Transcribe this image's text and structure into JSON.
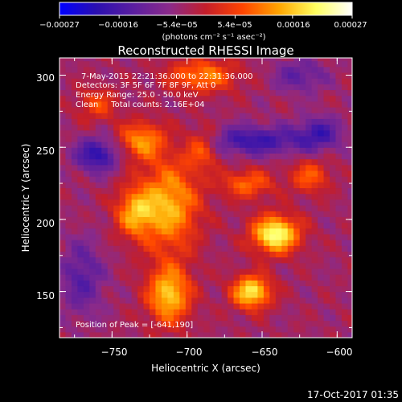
{
  "chart_data": {
    "type": "heatmap",
    "title": "Reconstructed RHESSI Image",
    "xlabel": "Heliocentric X (arcsec)",
    "ylabel": "Heliocentric Y (arcsec)",
    "xlim": [
      -785,
      -590
    ],
    "ylim": [
      118,
      312
    ],
    "x_ticks": [
      -750,
      -700,
      -650,
      -600
    ],
    "y_ticks": [
      150,
      200,
      250,
      300
    ],
    "x_tick_labels": [
      "−750",
      "−700",
      "−650",
      "−600"
    ],
    "y_tick_labels": [
      "150",
      "200",
      "250",
      "300"
    ],
    "colorbar": {
      "range": [
        -0.00027,
        0.00027
      ],
      "ticks": [
        -0.00027,
        -0.00016,
        -5.4e-05,
        5.4e-05,
        0.00016,
        0.00027
      ],
      "tick_labels": [
        "−0.00027",
        "−0.00016",
        "−5.4e−05",
        "5.4e−05",
        "0.00016",
        "0.00027"
      ],
      "unit_label": "(photons cm⁻² s⁻¹ asec⁻²)",
      "colors": [
        "#0000ff",
        "#2a0fb0",
        "#5a1ea0",
        "#8a2a8a",
        "#c41e2a",
        "#ff4400",
        "#ffa500",
        "#ffff60",
        "#ffffff"
      ]
    },
    "annotations": [
      "7-May-2015 22:21:36.000 to 22:31:36.000",
      "Detectors: 3F 5F 6F 7F 8F 9F, Att 0",
      "Energy Range: 25.0 - 50.0 keV",
      "Clean     Total counts: 2.16E+04",
      "Position of Peak = [-641,190]"
    ],
    "peak": [
      -641,
      190
    ],
    "sources": [
      {
        "x": -641,
        "y": 190,
        "amp": 0.00027,
        "sx": 11,
        "sy": 9
      },
      {
        "x": -657,
        "y": 150,
        "amp": 0.00024,
        "sx": 9,
        "sy": 8
      },
      {
        "x": -712,
        "y": 148,
        "amp": 0.00021,
        "sx": 10,
        "sy": 14
      },
      {
        "x": -712,
        "y": 210,
        "amp": 0.00019,
        "sx": 14,
        "sy": 22
      },
      {
        "x": -735,
        "y": 205,
        "amp": 0.00016,
        "sx": 9,
        "sy": 12
      },
      {
        "x": -730,
        "y": 255,
        "amp": 0.00016,
        "sx": 11,
        "sy": 9
      },
      {
        "x": -690,
        "y": 300,
        "amp": 0.00015,
        "sx": 16,
        "sy": 8
      },
      {
        "x": -690,
        "y": 250,
        "amp": 0.00012,
        "sx": 8,
        "sy": 10
      },
      {
        "x": -618,
        "y": 230,
        "amp": 0.00012,
        "sx": 9,
        "sy": 8
      },
      {
        "x": -660,
        "y": 225,
        "amp": 0.00013,
        "sx": 12,
        "sy": 7
      },
      {
        "x": -760,
        "y": 280,
        "amp": 0.0001,
        "sx": 9,
        "sy": 8
      },
      {
        "x": -655,
        "y": 255,
        "amp": -0.00014,
        "sx": 24,
        "sy": 7
      },
      {
        "x": -760,
        "y": 245,
        "amp": -0.00016,
        "sx": 10,
        "sy": 8
      },
      {
        "x": -612,
        "y": 260,
        "amp": -0.00012,
        "sx": 10,
        "sy": 8
      },
      {
        "x": -770,
        "y": 160,
        "amp": -0.0001,
        "sx": 10,
        "sy": 18
      },
      {
        "x": -625,
        "y": 300,
        "amp": -9e-05,
        "sx": 12,
        "sy": 8
      }
    ]
  },
  "footer": {
    "date": "17-Oct-2017 01:35"
  }
}
